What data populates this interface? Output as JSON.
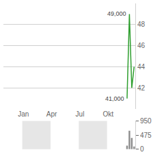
{
  "chart_data": {
    "type": "line",
    "categories": [
      null,
      null,
      null,
      null,
      null,
      null,
      null,
      null,
      "Jan",
      null,
      null,
      null,
      null,
      null,
      null,
      null,
      null,
      null,
      null,
      null,
      "Apr",
      null,
      null,
      null,
      null,
      null,
      null,
      null,
      null,
      null,
      null,
      null,
      "Jul",
      null,
      null,
      null,
      null,
      null,
      null,
      null,
      null,
      null,
      null,
      null,
      "Okt",
      null,
      null,
      null,
      null,
      null,
      null,
      null,
      null,
      null,
      null,
      null
    ],
    "series": [
      {
        "type": "line",
        "color": "#2e9e2e",
        "values": [
          null,
          null,
          null,
          null,
          null,
          null,
          null,
          null,
          null,
          null,
          null,
          null,
          null,
          null,
          null,
          null,
          null,
          null,
          null,
          null,
          null,
          null,
          null,
          null,
          null,
          null,
          null,
          null,
          null,
          null,
          null,
          null,
          null,
          null,
          null,
          null,
          null,
          null,
          null,
          null,
          null,
          null,
          null,
          null,
          null,
          null,
          null,
          null,
          null,
          null,
          null,
          null,
          41,
          49,
          42,
          44
        ]
      },
      {
        "type": "bar",
        "axis": "y2",
        "color": "#8c8c8c",
        "values": [
          null,
          null,
          null,
          null,
          null,
          null,
          null,
          null,
          null,
          null,
          null,
          null,
          null,
          null,
          null,
          null,
          null,
          null,
          null,
          null,
          null,
          null,
          null,
          null,
          null,
          null,
          null,
          null,
          null,
          null,
          null,
          null,
          null,
          null,
          null,
          null,
          null,
          null,
          null,
          null,
          null,
          null,
          null,
          null,
          null,
          null,
          null,
          null,
          null,
          null,
          null,
          null,
          120,
          620,
          380,
          90
        ]
      }
    ],
    "annotations": [
      {
        "value": 49,
        "label": "49,000"
      },
      {
        "value": 41,
        "label": "41,000"
      }
    ],
    "ylim": [
      40,
      50
    ],
    "yticks": [
      42,
      44,
      46,
      48
    ],
    "y2lim": [
      0,
      950
    ],
    "y2ticks": [
      0,
      475,
      950
    ],
    "grid": true
  }
}
